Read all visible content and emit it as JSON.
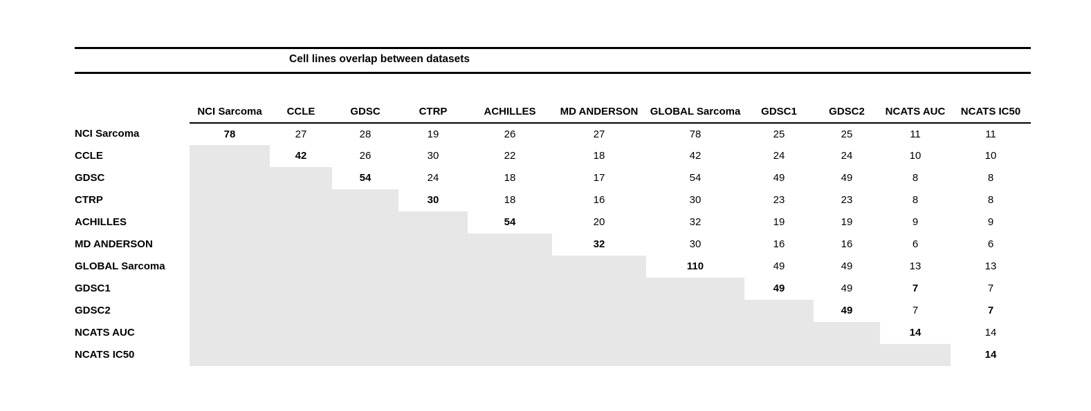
{
  "title": "Cell lines overlap between datasets",
  "chart_data": {
    "type": "table",
    "title": "Cell lines overlap between datasets",
    "labels": [
      "NCI Sarcoma",
      "CCLE",
      "GDSC",
      "CTRP",
      "ACHILLES",
      "MD ANDERSON",
      "GLOBAL Sarcoma",
      "GDSC1",
      "GDSC2",
      "NCATS AUC",
      "NCATS IC50"
    ],
    "matrix": [
      [
        78,
        27,
        28,
        19,
        26,
        27,
        78,
        25,
        25,
        11,
        11
      ],
      [
        null,
        42,
        26,
        30,
        22,
        18,
        42,
        24,
        24,
        10,
        10
      ],
      [
        null,
        null,
        54,
        24,
        18,
        17,
        54,
        49,
        49,
        8,
        8
      ],
      [
        null,
        null,
        null,
        30,
        18,
        16,
        30,
        23,
        23,
        8,
        8
      ],
      [
        null,
        null,
        null,
        null,
        54,
        20,
        32,
        19,
        19,
        9,
        9
      ],
      [
        null,
        null,
        null,
        null,
        null,
        32,
        30,
        16,
        16,
        6,
        6
      ],
      [
        null,
        null,
        null,
        null,
        null,
        null,
        110,
        49,
        49,
        13,
        13
      ],
      [
        null,
        null,
        null,
        null,
        null,
        null,
        null,
        49,
        49,
        7,
        7
      ],
      [
        null,
        null,
        null,
        null,
        null,
        null,
        null,
        null,
        49,
        7,
        7
      ],
      [
        null,
        null,
        null,
        null,
        null,
        null,
        null,
        null,
        null,
        14,
        14
      ],
      [
        null,
        null,
        null,
        null,
        null,
        null,
        null,
        null,
        null,
        null,
        14
      ]
    ],
    "diagonal_bold": true,
    "extra_bold_cells": [
      [
        7,
        9
      ],
      [
        8,
        10
      ]
    ],
    "lower_triangle_fill": "#e7e7e7"
  }
}
